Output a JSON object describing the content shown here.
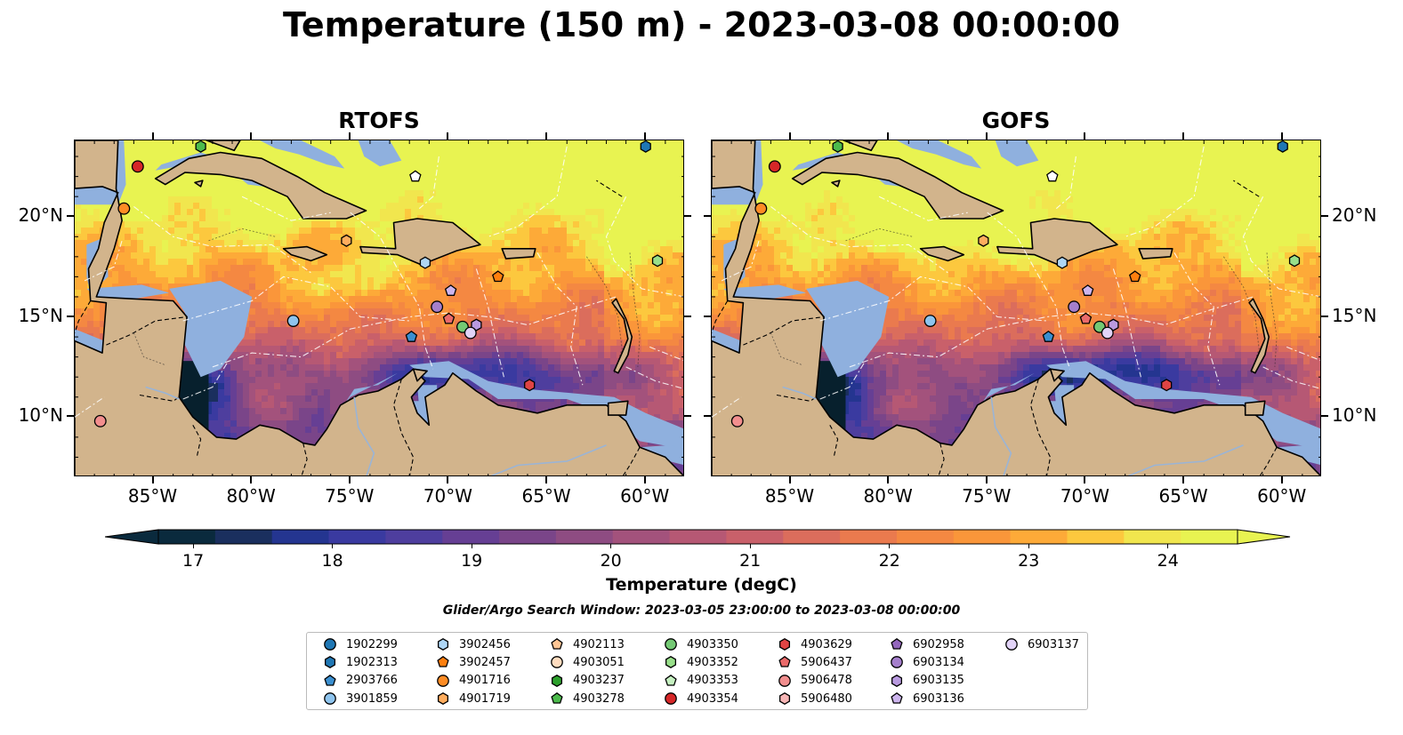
{
  "title": "Temperature (150 m) - 2023-03-08 00:00:00",
  "panels": [
    {
      "title": "RTOFS",
      "mode": "rtofs"
    },
    {
      "title": "GOFS",
      "mode": "gofs"
    }
  ],
  "lon_ticks": [
    "85°W",
    "80°W",
    "75°W",
    "70°W",
    "65°W",
    "60°W"
  ],
  "lat_ticks": [
    "20°N",
    "15°N",
    "10°N"
  ],
  "colorbar": {
    "ticks": [
      "17",
      "18",
      "19",
      "20",
      "21",
      "22",
      "23",
      "24"
    ],
    "label": "Temperature (degC)",
    "range": [
      16.75,
      24.5
    ],
    "colors": [
      "#0a2a3d",
      "#1a2f5e",
      "#243590",
      "#3a3aa0",
      "#4e3e9e",
      "#663f94",
      "#7a4589",
      "#8e4c82",
      "#a3527c",
      "#b65874",
      "#c9606a",
      "#db6d5c",
      "#ea7a4e",
      "#f48842",
      "#fa963a",
      "#fdaa38",
      "#fcc83e",
      "#f1e64e",
      "#e8f351"
    ]
  },
  "subtitle": "Glider/Argo Search Window: 2023-03-05 23:00:00 to 2023-03-08 00:00:00",
  "legend": [
    {
      "id": "1902299",
      "shape": "circle",
      "color": "#1f77b4"
    },
    {
      "id": "1902313",
      "shape": "hexagon",
      "color": "#1f77b4"
    },
    {
      "id": "2903766",
      "shape": "pentagon",
      "color": "#3a8fd0"
    },
    {
      "id": "3901859",
      "shape": "circle",
      "color": "#8ec4ee"
    },
    {
      "id": "3902456",
      "shape": "hexagon",
      "color": "#aed6f5"
    },
    {
      "id": "3902457",
      "shape": "pentagon",
      "color": "#ff7f0e"
    },
    {
      "id": "4901716",
      "shape": "circle",
      "color": "#ff8c24"
    },
    {
      "id": "4901719",
      "shape": "hexagon",
      "color": "#ffad5e"
    },
    {
      "id": "4902113",
      "shape": "pentagon",
      "color": "#ffc594"
    },
    {
      "id": "4903051",
      "shape": "circle",
      "color": "#ffdcbf"
    },
    {
      "id": "4903237",
      "shape": "hexagon",
      "color": "#2ca02c"
    },
    {
      "id": "4903278",
      "shape": "pentagon",
      "color": "#4cbb4c"
    },
    {
      "id": "4903350",
      "shape": "circle",
      "color": "#74c974"
    },
    {
      "id": "4903352",
      "shape": "hexagon",
      "color": "#98df8a"
    },
    {
      "id": "4903353",
      "shape": "pentagon",
      "color": "#c5f0c0"
    },
    {
      "id": "4903354",
      "shape": "circle",
      "color": "#d62728"
    },
    {
      "id": "4903629",
      "shape": "hexagon",
      "color": "#e04444"
    },
    {
      "id": "5906437",
      "shape": "pentagon",
      "color": "#ea6a6a"
    },
    {
      "id": "5906478",
      "shape": "circle",
      "color": "#f28e8e"
    },
    {
      "id": "5906480",
      "shape": "hexagon",
      "color": "#f7b6b6"
    },
    {
      "id": "6902958",
      "shape": "pentagon",
      "color": "#9467bd"
    },
    {
      "id": "6903134",
      "shape": "circle",
      "color": "#a57fcc"
    },
    {
      "id": "6903135",
      "shape": "hexagon",
      "color": "#b99ae0"
    },
    {
      "id": "6903136",
      "shape": "pentagon",
      "color": "#cdb5ee"
    },
    {
      "id": "6903137",
      "shape": "circle",
      "color": "#e2d3f7"
    }
  ],
  "floats": [
    {
      "shape": "hexagon",
      "color": "#4cbb4c",
      "lon": -82.6,
      "lat": 23.5
    },
    {
      "shape": "hexagon",
      "color": "#1f77b4",
      "lon": -60.0,
      "lat": 23.5
    },
    {
      "shape": "circle",
      "color": "#d62728",
      "lon": -85.8,
      "lat": 22.5
    },
    {
      "shape": "pentagon",
      "color": "#ffffff",
      "lon": -71.7,
      "lat": 22.0
    },
    {
      "shape": "circle",
      "color": "#ff8c24",
      "lon": -86.5,
      "lat": 20.4
    },
    {
      "shape": "hexagon",
      "color": "#ffad5e",
      "lon": -75.2,
      "lat": 18.8
    },
    {
      "shape": "hexagon",
      "color": "#aed6f5",
      "lon": -71.2,
      "lat": 17.7
    },
    {
      "shape": "hexagon",
      "color": "#98df8a",
      "lon": -59.4,
      "lat": 17.8
    },
    {
      "shape": "pentagon",
      "color": "#ff7f0e",
      "lon": -67.5,
      "lat": 17.0
    },
    {
      "shape": "pentagon",
      "color": "#cdb5ee",
      "lon": -69.9,
      "lat": 16.3
    },
    {
      "shape": "circle",
      "color": "#a57fcc",
      "lon": -70.6,
      "lat": 15.5
    },
    {
      "shape": "pentagon",
      "color": "#ea6a6a",
      "lon": -70.0,
      "lat": 14.9
    },
    {
      "shape": "circle",
      "color": "#8ec4ee",
      "lon": -77.9,
      "lat": 14.8
    },
    {
      "shape": "circle",
      "color": "#74c974",
      "lon": -69.3,
      "lat": 14.5
    },
    {
      "shape": "hexagon",
      "color": "#b99ae0",
      "lon": -68.6,
      "lat": 14.6
    },
    {
      "shape": "circle",
      "color": "#e2d3f7",
      "lon": -68.9,
      "lat": 14.2
    },
    {
      "shape": "pentagon",
      "color": "#3a8fd0",
      "lon": -71.9,
      "lat": 14.0
    },
    {
      "shape": "hexagon",
      "color": "#e04444",
      "lon": -65.9,
      "lat": 11.6
    },
    {
      "shape": "circle",
      "color": "#f28e8e",
      "lon": -87.7,
      "lat": 9.8
    }
  ],
  "extent": {
    "lon": [
      -89,
      -58
    ],
    "lat": [
      7,
      23.8
    ]
  },
  "colors": {
    "land": "#d2b48c",
    "shelf": "#8fb0de",
    "deep": "#07202d"
  }
}
